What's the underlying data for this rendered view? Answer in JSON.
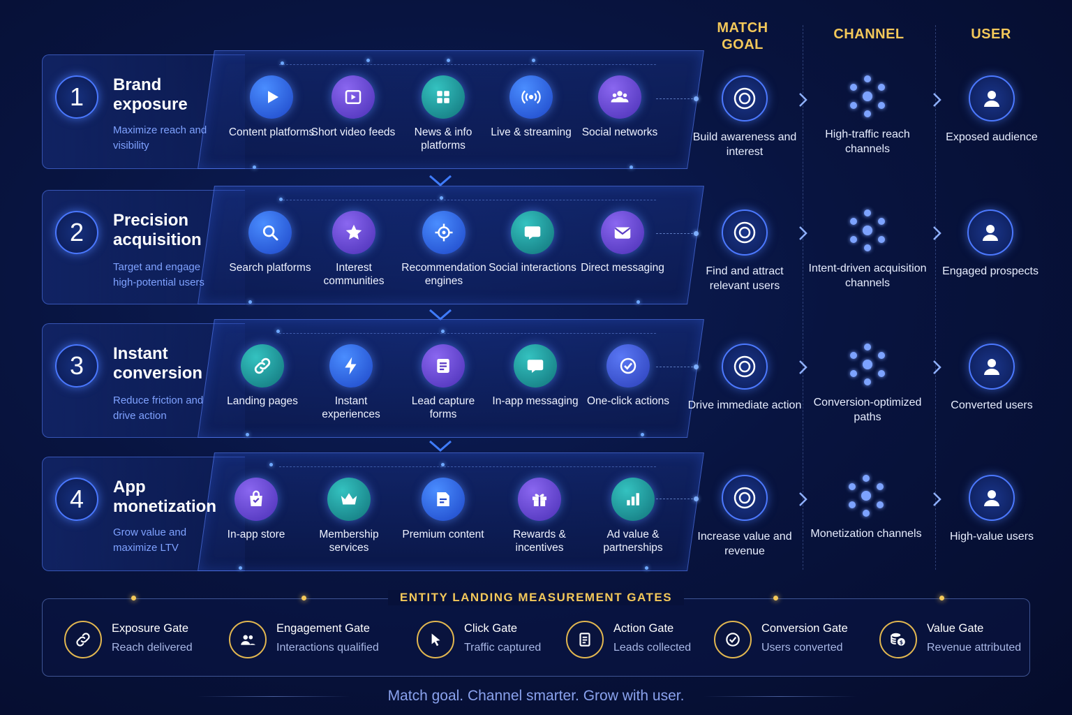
{
  "columns": {
    "match_goal": "MATCH GOAL",
    "channel": "CHANNEL",
    "user": "USER"
  },
  "stages": [
    {
      "number": "1",
      "title": "Brand exposure",
      "subtitle": "Maximize reach and visibility",
      "items": [
        {
          "label": "Content platforms",
          "icon": "play-icon"
        },
        {
          "label": "Short video feeds",
          "icon": "video-icon"
        },
        {
          "label": "News & info platforms",
          "icon": "grid-icon"
        },
        {
          "label": "Live & streaming",
          "icon": "broadcast-icon"
        },
        {
          "label": "Social networks",
          "icon": "people-icon"
        }
      ],
      "goal": "Build awareness and interest",
      "channel": "High-traffic reach channels",
      "user": "Exposed audience"
    },
    {
      "number": "2",
      "title": "Precision acquisition",
      "subtitle": "Target and engage high-potential users",
      "items": [
        {
          "label": "Search platforms",
          "icon": "search-icon"
        },
        {
          "label": "Interest communities",
          "icon": "star-icon"
        },
        {
          "label": "Recommendation engines",
          "icon": "crosshair-icon"
        },
        {
          "label": "Social interactions",
          "icon": "chat-icon"
        },
        {
          "label": "Direct messaging",
          "icon": "mail-icon"
        }
      ],
      "goal": "Find and attract relevant users",
      "channel": "Intent-driven acquisition channels",
      "user": "Engaged prospects"
    },
    {
      "number": "3",
      "title": "Instant conversion",
      "subtitle": "Reduce friction and drive action",
      "items": [
        {
          "label": "Landing pages",
          "icon": "link-icon"
        },
        {
          "label": "Instant experiences",
          "icon": "bolt-icon"
        },
        {
          "label": "Lead capture forms",
          "icon": "form-icon"
        },
        {
          "label": "In-app messaging",
          "icon": "chat-icon"
        },
        {
          "label": "One-click actions",
          "icon": "check-icon"
        }
      ],
      "goal": "Drive immediate action",
      "channel": "Conversion-optimized paths",
      "user": "Converted users"
    },
    {
      "number": "4",
      "title": "App monetization",
      "subtitle": "Grow value and maximize LTV",
      "items": [
        {
          "label": "In-app store",
          "icon": "bag-icon"
        },
        {
          "label": "Membership services",
          "icon": "crown-icon"
        },
        {
          "label": "Premium content",
          "icon": "doc-icon"
        },
        {
          "label": "Rewards & incentives",
          "icon": "gift-icon"
        },
        {
          "label": "Ad value & partnerships",
          "icon": "bar-chart-icon"
        }
      ],
      "goal": "Increase value and revenue",
      "channel": "Monetization channels",
      "user": "High-value users"
    }
  ],
  "gates": {
    "title": "ENTITY LANDING MEASUREMENT GATES",
    "items": [
      {
        "title": "Exposure Gate",
        "subtitle": "Reach delivered",
        "icon": "link-icon"
      },
      {
        "title": "Engagement Gate",
        "subtitle": "Interactions qualified",
        "icon": "people-icon"
      },
      {
        "title": "Click Gate",
        "subtitle": "Traffic captured",
        "icon": "cursor-icon"
      },
      {
        "title": "Action Gate",
        "subtitle": "Leads collected",
        "icon": "form-icon"
      },
      {
        "title": "Conversion Gate",
        "subtitle": "Users converted",
        "icon": "check-icon"
      },
      {
        "title": "Value Gate",
        "subtitle": "Revenue attributed",
        "icon": "coins-icon"
      }
    ]
  },
  "tagline": "Match goal. Channel smarter. Grow with user.",
  "colors": {
    "accent_gold": "#f3c85a",
    "accent_blue": "#4a78ff",
    "background": "#081440"
  }
}
